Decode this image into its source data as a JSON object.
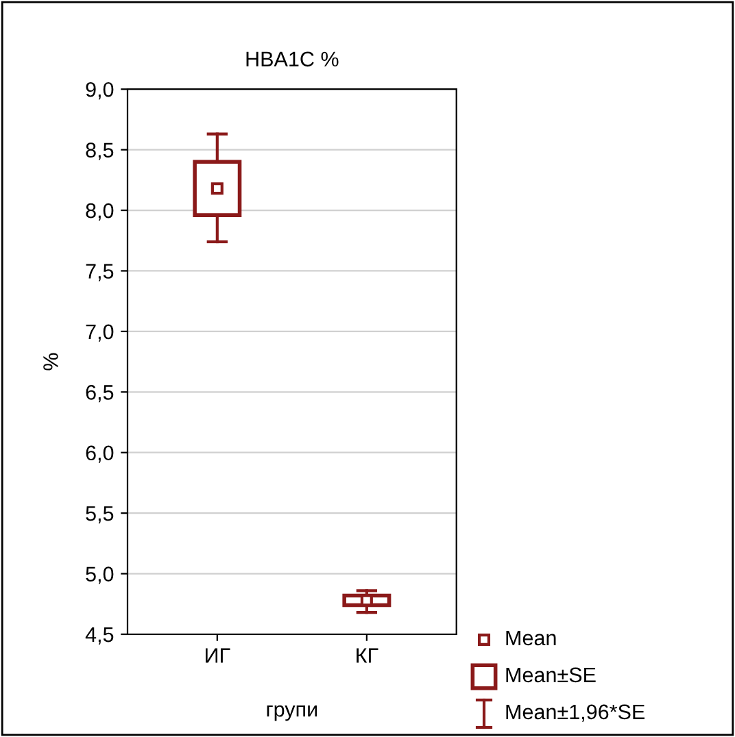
{
  "chart_data": {
    "type": "box",
    "title": "HBA1C %",
    "xlabel": "групи",
    "ylabel": "%",
    "categories": [
      "ИГ",
      "КГ"
    ],
    "boxes": [
      {
        "low": 7.74,
        "q1": 7.96,
        "median": 8.18,
        "q3": 8.4,
        "high": 8.63
      },
      {
        "low": 4.68,
        "q1": 4.74,
        "median": 4.78,
        "q3": 4.82,
        "high": 4.86
      }
    ],
    "color": "#8b1a1a",
    "ylim": [
      4.5,
      9.0
    ],
    "yticks": [
      {
        "value": 4.5,
        "label": "4,5"
      },
      {
        "value": 5.0,
        "label": "5,0"
      },
      {
        "value": 5.5,
        "label": "5,5"
      },
      {
        "value": 6.0,
        "label": "6,0"
      },
      {
        "value": 6.5,
        "label": "6,5"
      },
      {
        "value": 7.0,
        "label": "7,0"
      },
      {
        "value": 7.5,
        "label": "7,5"
      },
      {
        "value": 8.0,
        "label": "8,0"
      },
      {
        "value": 8.5,
        "label": "8,5"
      },
      {
        "value": 9.0,
        "label": "9,0"
      }
    ],
    "grid": "y",
    "marker": "square",
    "annotations": [
      "Mean",
      "Mean±SE",
      "Mean±1,96*SE"
    ]
  }
}
